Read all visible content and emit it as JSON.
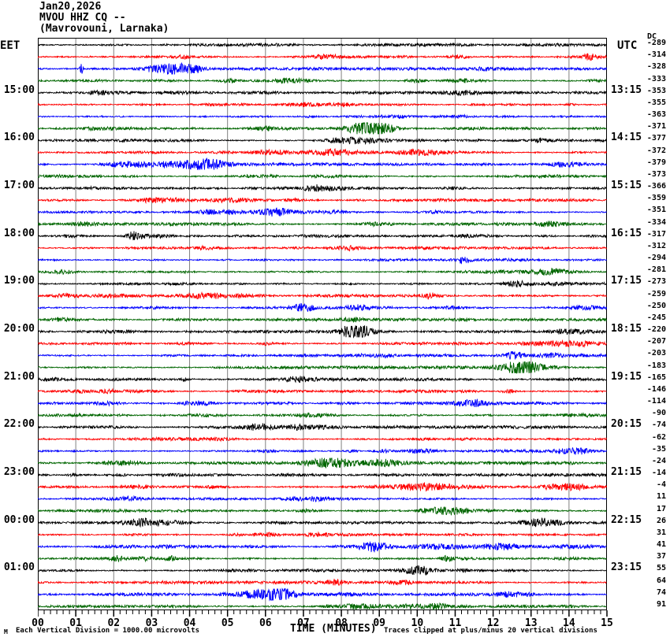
{
  "header": {
    "date": "Jan20,2026",
    "station_line": "MVOU HHZ CQ --",
    "location_line": "(Mavrovouni, Larnaka)"
  },
  "axes": {
    "left_tz": "EET",
    "right_tz": "UTC",
    "dc_header": "DC",
    "x_title": "TIME (MINUTES)",
    "x_ticks": [
      "00",
      "01",
      "02",
      "03",
      "04",
      "05",
      "06",
      "07",
      "08",
      "09",
      "10",
      "11",
      "12",
      "13",
      "14",
      "15"
    ]
  },
  "footer": {
    "watermark": "M",
    "scale_note": "Each Vertical Division = 1000.00 microvolts",
    "clip_note": "Traces clipped at plus/minus 20 vertical divisions"
  },
  "chart_data": {
    "type": "line",
    "title": "MVOU HHZ CQ -- (Mavrovouni, Larnaka) Jan20,2026 helicorder",
    "xlabel": "TIME (MINUTES)",
    "x_range": [
      0,
      15
    ],
    "minutes_per_line": 15,
    "grid": "vertical-gray-per-minute",
    "minor_ticks_per_minute": 6,
    "trace_colors": [
      "#000000",
      "#ff0000",
      "#0000ff",
      "#006600"
    ],
    "grid_color": "#808080",
    "rows": [
      {
        "dc": -289
      },
      {
        "dc": -314
      },
      {
        "dc": -328
      },
      {
        "dc": -333
      },
      {
        "dc": -353,
        "eet": "15:00",
        "utc": "13:15"
      },
      {
        "dc": -355
      },
      {
        "dc": -363
      },
      {
        "dc": -371
      },
      {
        "dc": -377,
        "eet": "16:00",
        "utc": "14:15"
      },
      {
        "dc": -372
      },
      {
        "dc": -379
      },
      {
        "dc": -373
      },
      {
        "dc": -366,
        "eet": "17:00",
        "utc": "15:15"
      },
      {
        "dc": -359
      },
      {
        "dc": -351
      },
      {
        "dc": -334
      },
      {
        "dc": -317,
        "eet": "18:00",
        "utc": "16:15"
      },
      {
        "dc": -312
      },
      {
        "dc": -294
      },
      {
        "dc": -281
      },
      {
        "dc": -273,
        "eet": "19:00",
        "utc": "17:15"
      },
      {
        "dc": -259
      },
      {
        "dc": -250
      },
      {
        "dc": -245
      },
      {
        "dc": -220,
        "eet": "20:00",
        "utc": "18:15"
      },
      {
        "dc": -207
      },
      {
        "dc": -203
      },
      {
        "dc": -183
      },
      {
        "dc": -165,
        "eet": "21:00",
        "utc": "19:15"
      },
      {
        "dc": -146
      },
      {
        "dc": -114
      },
      {
        "dc": -90
      },
      {
        "dc": -74,
        "eet": "22:00",
        "utc": "20:15"
      },
      {
        "dc": -62
      },
      {
        "dc": -35
      },
      {
        "dc": -24
      },
      {
        "dc": -14,
        "eet": "23:00",
        "utc": "21:15"
      },
      {
        "dc": -4
      },
      {
        "dc": 11
      },
      {
        "dc": 17
      },
      {
        "dc": 26,
        "eet": "00:00",
        "utc": "22:15"
      },
      {
        "dc": 31
      },
      {
        "dc": 41
      },
      {
        "dc": 37
      },
      {
        "dc": 55,
        "eet": "01:00",
        "utc": "23:15"
      },
      {
        "dc": 64
      },
      {
        "dc": 74
      },
      {
        "dc": 91
      }
    ],
    "events": [
      {
        "row": 3,
        "minute": 1.15,
        "amp": 6,
        "width": 2
      },
      {
        "row": 21,
        "minute": 12.6,
        "amp": 3.5,
        "width": 14
      }
    ]
  }
}
